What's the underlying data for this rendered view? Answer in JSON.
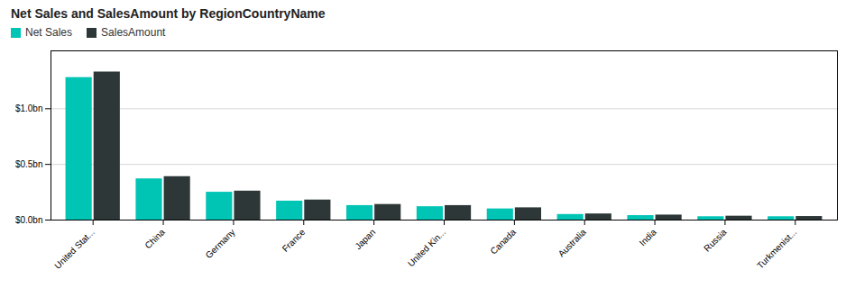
{
  "chart_data": {
    "type": "bar",
    "title": "Net Sales and SalesAmount by RegionCountryName",
    "categories": [
      "United Stat...",
      "China",
      "Germany",
      "France",
      "Japan",
      "United Kin...",
      "Canada",
      "Australia",
      "India",
      "Russia",
      "Turkmenist..."
    ],
    "series": [
      {
        "name": "Net Sales",
        "color": "#00c4b4",
        "values": [
          1.28,
          0.37,
          0.25,
          0.17,
          0.13,
          0.12,
          0.1,
          0.05,
          0.04,
          0.03,
          0.03
        ]
      },
      {
        "name": "SalesAmount",
        "color": "#2d3738",
        "values": [
          1.33,
          0.39,
          0.26,
          0.18,
          0.14,
          0.13,
          0.11,
          0.055,
          0.045,
          0.035,
          0.032
        ]
      }
    ],
    "ylim": [
      0,
      1.52
    ],
    "yticks": [
      {
        "value": 0.0,
        "label": "$0.0bn"
      },
      {
        "value": 0.5,
        "label": "$0.5bn"
      },
      {
        "value": 1.0,
        "label": "$1.0bn"
      }
    ],
    "grid": true,
    "legend": "top"
  }
}
